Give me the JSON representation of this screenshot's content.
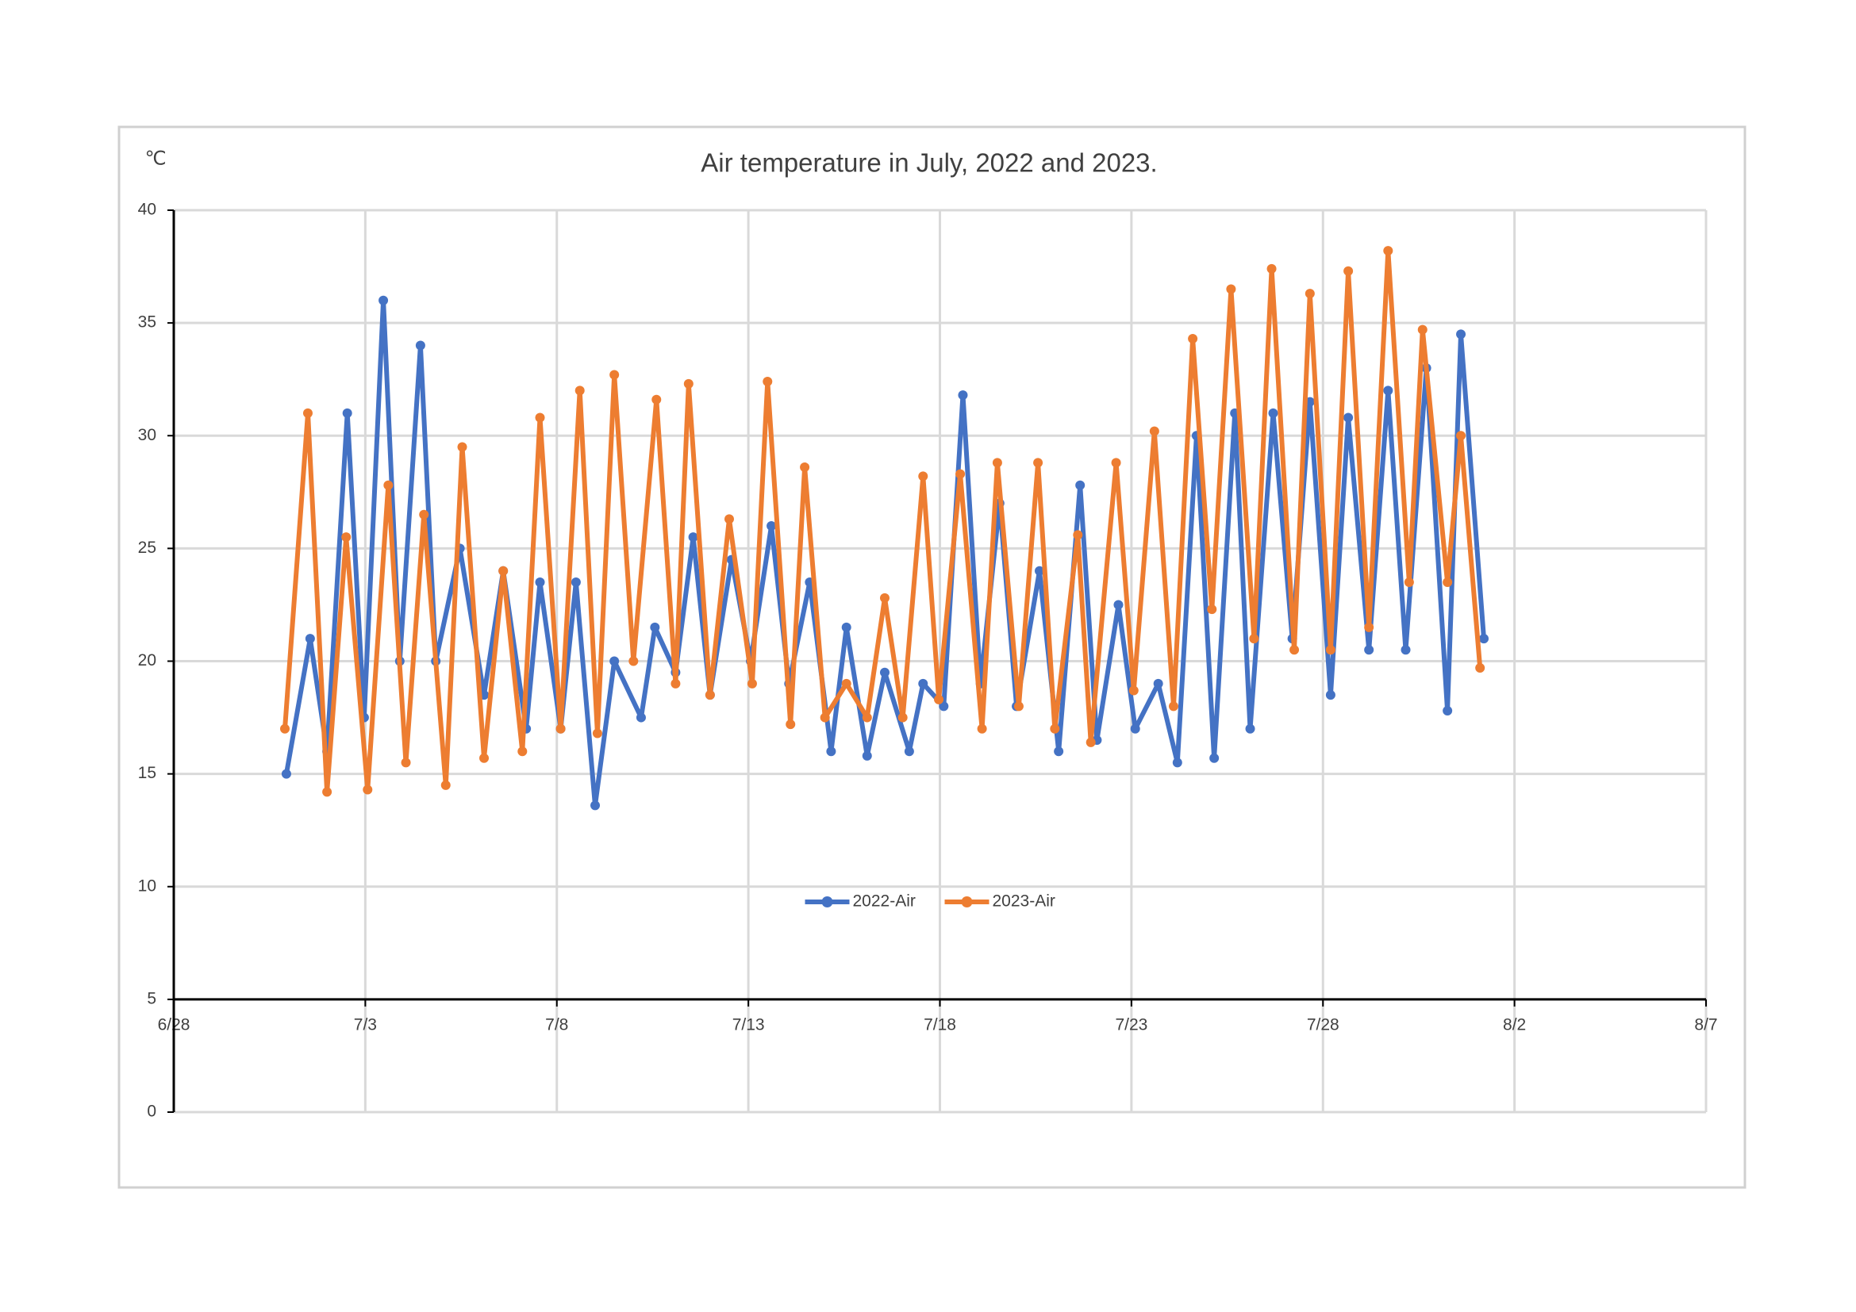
{
  "chart_data": {
    "type": "line",
    "title": "Air temperature in July, 2022 and 2023.",
    "y_unit": "℃",
    "xlim": [
      0,
      40
    ],
    "xticks": [
      {
        "value": 0,
        "label": "6/28"
      },
      {
        "value": 5,
        "label": "7/3"
      },
      {
        "value": 10,
        "label": "7/8"
      },
      {
        "value": 15,
        "label": "7/13"
      },
      {
        "value": 20,
        "label": "7/18"
      },
      {
        "value": 25,
        "label": "7/23"
      },
      {
        "value": 30,
        "label": "7/28"
      },
      {
        "value": 35,
        "label": "8/2"
      },
      {
        "value": 40,
        "label": "8/7"
      }
    ],
    "ylim": [
      0,
      40
    ],
    "yticks": [
      0,
      5,
      10,
      15,
      20,
      25,
      30,
      35,
      40
    ],
    "x_axis_crosses": 5,
    "grid": true,
    "legend": "center",
    "series": [
      {
        "name": "2022-Air",
        "color": "#4472c4",
        "x": [
          2.94,
          3.56,
          4.0,
          4.53,
          4.97,
          5.47,
          5.9,
          6.44,
          6.84,
          7.47,
          8.1,
          8.6,
          9.2,
          9.56,
          10.1,
          10.5,
          11.0,
          11.5,
          12.2,
          12.56,
          13.1,
          13.56,
          14.0,
          14.56,
          15.06,
          15.6,
          16.06,
          16.6,
          17.16,
          17.56,
          18.1,
          18.56,
          19.2,
          19.56,
          20.1,
          20.6,
          21.06,
          21.56,
          22.0,
          22.6,
          23.1,
          23.66,
          24.1,
          24.66,
          25.1,
          25.7,
          26.2,
          26.7,
          27.16,
          27.7,
          28.1,
          28.7,
          29.2,
          29.66,
          30.2,
          30.66,
          31.2,
          31.7,
          32.16,
          32.7,
          33.25,
          33.6,
          34.2
        ],
        "values": [
          15,
          21,
          16,
          31,
          17.5,
          36,
          20,
          34,
          20,
          25,
          18.5,
          24,
          17,
          23.5,
          17,
          23.5,
          13.6,
          20,
          17.5,
          21.5,
          19.5,
          25.5,
          18.5,
          24.5,
          20,
          26,
          19,
          23.5,
          16,
          21.5,
          15.8,
          19.5,
          16,
          19,
          18,
          31.8,
          19,
          27,
          18,
          24,
          16,
          27.8,
          16.5,
          22.5,
          17,
          19,
          15.5,
          30,
          15.7,
          31,
          17,
          31,
          21,
          31.5,
          18.5,
          30.8,
          20.5,
          32,
          20.5,
          33,
          17.8,
          34.5,
          21
        ]
      },
      {
        "name": "2023-Air",
        "color": "#ed7d31",
        "x": [
          2.9,
          3.5,
          4.0,
          4.5,
          5.06,
          5.6,
          6.06,
          6.53,
          7.1,
          7.53,
          8.1,
          8.6,
          9.1,
          9.56,
          10.1,
          10.6,
          11.06,
          11.5,
          12.0,
          12.6,
          13.1,
          13.44,
          14.0,
          14.5,
          15.1,
          15.5,
          16.1,
          16.47,
          17.0,
          17.56,
          18.1,
          18.56,
          19.03,
          19.56,
          19.97,
          20.53,
          21.1,
          21.5,
          22.06,
          22.56,
          23.0,
          23.6,
          23.94,
          24.6,
          25.06,
          25.6,
          26.1,
          26.6,
          27.1,
          27.6,
          28.2,
          28.66,
          29.25,
          29.66,
          30.2,
          30.66,
          31.2,
          31.7,
          32.25,
          32.6,
          33.25,
          33.6,
          34.1
        ],
        "values": [
          17,
          31,
          14.2,
          25.5,
          14.3,
          27.8,
          15.5,
          26.5,
          14.5,
          29.5,
          15.7,
          24,
          16,
          30.8,
          17,
          32,
          16.8,
          32.7,
          20,
          31.6,
          19,
          32.3,
          18.5,
          26.3,
          19,
          32.4,
          17.2,
          28.6,
          17.5,
          19,
          17.5,
          22.8,
          17.5,
          28.2,
          18.3,
          28.3,
          17,
          28.8,
          18,
          28.8,
          17,
          25.6,
          16.4,
          28.8,
          18.7,
          30.2,
          18,
          34.3,
          22.3,
          36.5,
          21,
          37.4,
          20.5,
          36.3,
          20.5,
          37.3,
          21.5,
          38.2,
          23.5,
          34.7,
          23.5,
          30,
          19.7
        ]
      }
    ]
  }
}
